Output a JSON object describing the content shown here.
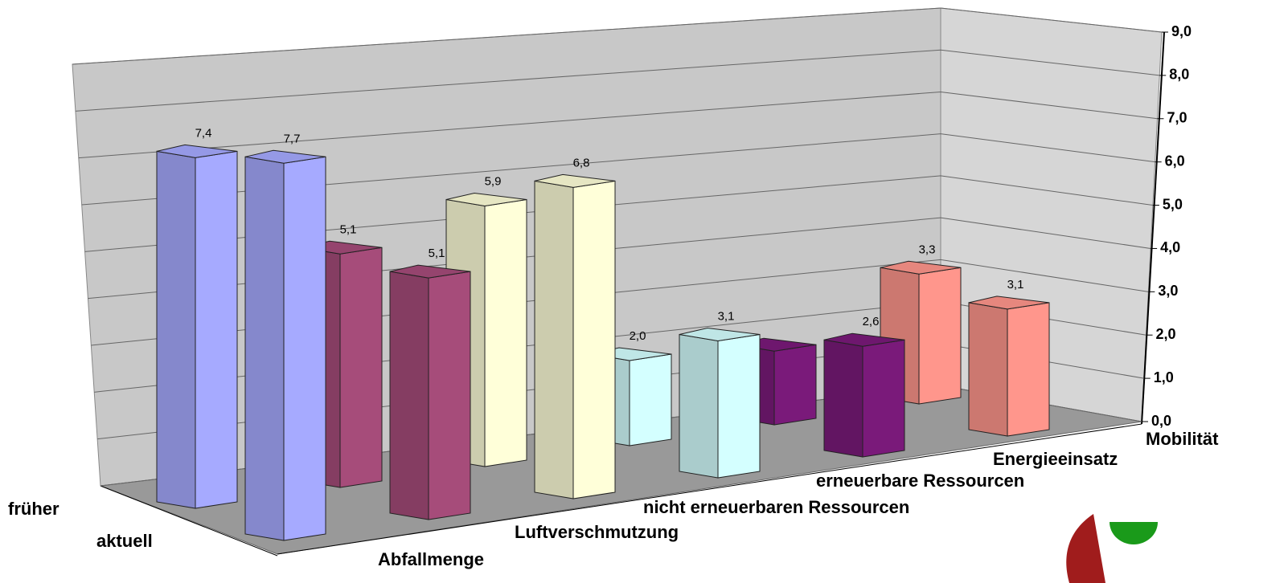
{
  "chart_data": {
    "type": "bar3d",
    "categories": [
      "Abfallmenge",
      "Luftverschmutzung",
      "nicht erneuerbaren Ressourcen",
      "erneuerbare Ressourcen",
      "Energieeinsatz",
      "Mobilität"
    ],
    "colors": [
      "#a6aaff",
      "#a64c7a",
      "#ffffd9",
      "#d4ffff",
      "#7a1a7a",
      "#ff968c"
    ],
    "series": [
      {
        "name": "früher",
        "values": [
          7.4,
          5.1,
          5.9,
          2.0,
          1.8,
          3.3
        ],
        "value_labels": [
          "7,4",
          "5,1",
          "5,9",
          "2,0",
          null,
          "3,3"
        ]
      },
      {
        "name": "aktuell",
        "values": [
          7.7,
          5.1,
          6.8,
          3.1,
          2.6,
          3.1
        ],
        "value_labels": [
          "7,7",
          "5,1",
          "6,8",
          "3,1",
          "2,6",
          "3,1"
        ]
      }
    ],
    "ylim": [
      0,
      9
    ],
    "yticks": [
      {
        "value": 0,
        "label": "0,0"
      },
      {
        "value": 1,
        "label": "1,0"
      },
      {
        "value": 2,
        "label": "2,0"
      },
      {
        "value": 3,
        "label": "3,0"
      },
      {
        "value": 4,
        "label": "4,0"
      },
      {
        "value": 5,
        "label": "5,0"
      },
      {
        "value": 6,
        "label": "6,0"
      },
      {
        "value": 7,
        "label": "7,0"
      },
      {
        "value": 8,
        "label": "8,0"
      },
      {
        "value": 9,
        "label": "9,0"
      }
    ],
    "grid": true
  }
}
